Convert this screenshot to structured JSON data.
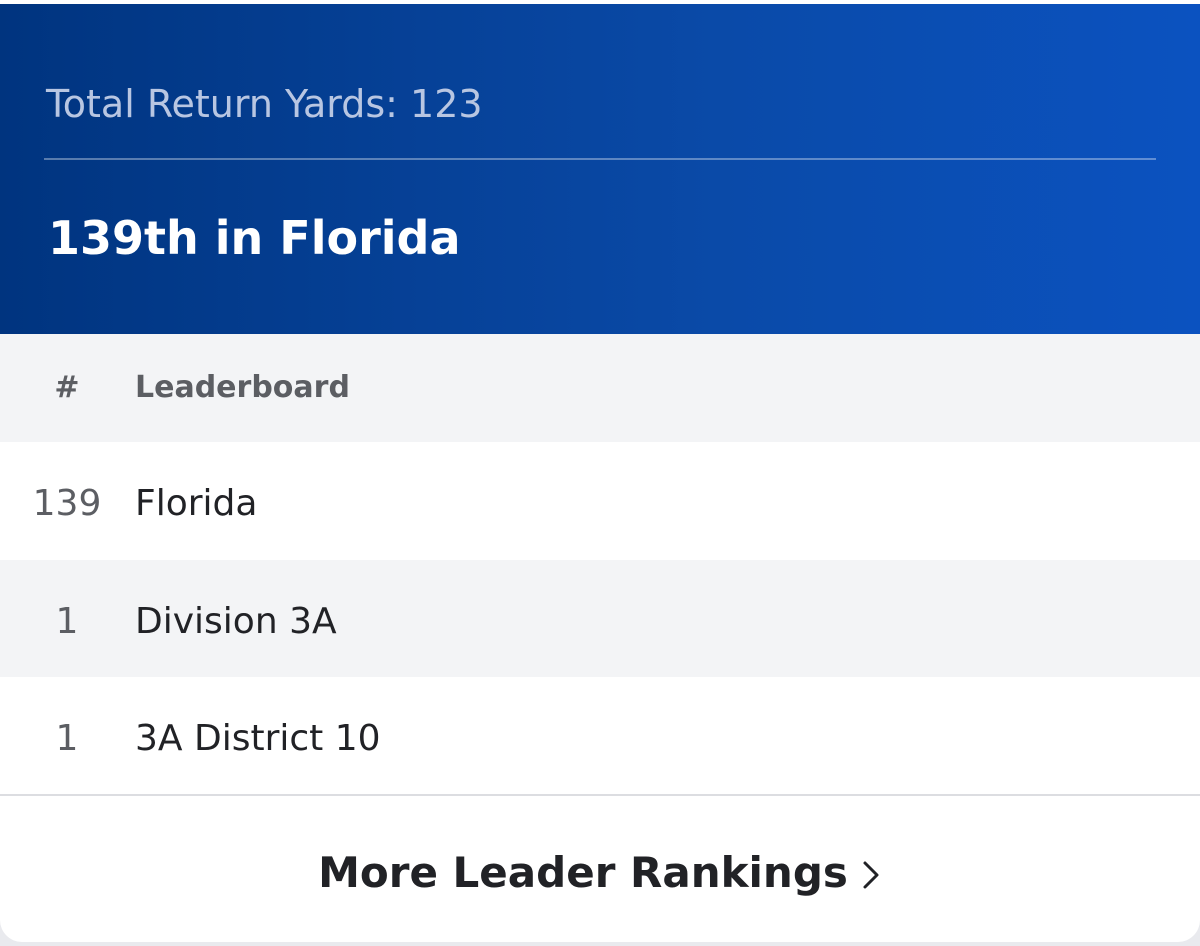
{
  "header": {
    "stat_label": "Total Return Yards: 123",
    "rank_title": "139th in Florida"
  },
  "table": {
    "columns": {
      "rank": "#",
      "leaderboard": "Leaderboard"
    },
    "rows": [
      {
        "rank": "139",
        "name": "Florida"
      },
      {
        "rank": "1",
        "name": "Division 3A"
      },
      {
        "rank": "1",
        "name": "3A District 10"
      }
    ]
  },
  "footer": {
    "more_label": "More Leader Rankings",
    "icon": "chevron-right-icon"
  },
  "colors": {
    "hero_start": "#00347f",
    "hero_end": "#0b52c0",
    "row_alt": "#f3f4f6",
    "text_primary": "#212226"
  }
}
